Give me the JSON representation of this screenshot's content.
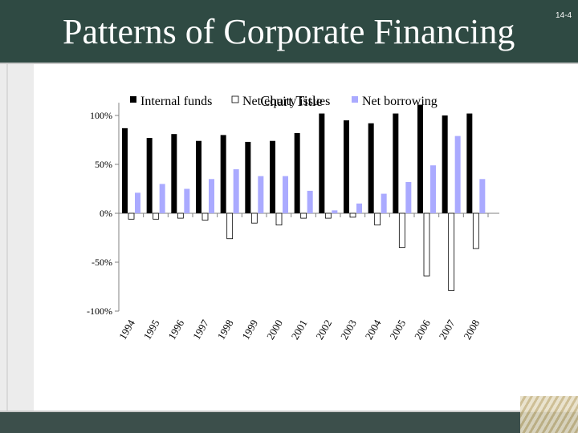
{
  "slide": {
    "title": "Patterns of Corporate Financing",
    "slide_number": "14-4"
  },
  "colors": {
    "title_bar": "#2f4a43",
    "internal_funds": "#000000",
    "net_equity_issues": "#ffffff",
    "net_borrowing": "#aaaaff"
  },
  "chart_data": {
    "type": "bar",
    "title": "Chart Title",
    "xlabel": "",
    "ylabel": "",
    "ylim": [
      -100,
      110
    ],
    "yticks": [
      100,
      50,
      0,
      -50,
      -100
    ],
    "ytick_labels": [
      "100%",
      "50%",
      "0%",
      "-50%",
      "-100%"
    ],
    "legend_position": "top",
    "grid": false,
    "categories": [
      "1994",
      "1995",
      "1996",
      "1997",
      "1998",
      "1999",
      "2000",
      "2001",
      "2002",
      "2003",
      "2004",
      "2005",
      "2006",
      "2007",
      "2008"
    ],
    "series": [
      {
        "name": "Internal funds",
        "color": "#000000",
        "values": [
          87,
          77,
          81,
          74,
          80,
          73,
          74,
          82,
          102,
          95,
          92,
          102,
          111,
          100,
          102
        ]
      },
      {
        "name": "Net equity issues",
        "color": "#ffffff",
        "values": [
          -6,
          -6,
          -5,
          -7,
          -26,
          -10,
          -12,
          -5,
          -5,
          -4,
          -12,
          -35,
          -64,
          -79,
          -36
        ]
      },
      {
        "name": "Net borrowing",
        "color": "#aaaaff",
        "values": [
          21,
          30,
          25,
          35,
          45,
          38,
          38,
          23,
          3,
          10,
          20,
          32,
          49,
          79,
          35
        ]
      }
    ]
  }
}
